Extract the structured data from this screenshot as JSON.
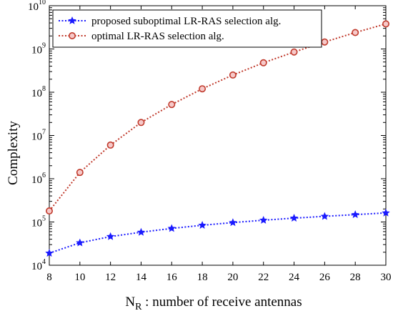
{
  "chart_data": {
    "type": "line",
    "title": "",
    "xlabel_main": "N",
    "xlabel_sub": "R",
    "xlabel_rest": " : number of receive antennas",
    "ylabel": "Complexity",
    "yscale": "log",
    "xlim": [
      8,
      30
    ],
    "ylim": [
      10000,
      10000000000
    ],
    "x_ticks": [
      8,
      10,
      12,
      14,
      16,
      18,
      20,
      22,
      24,
      26,
      28,
      30
    ],
    "y_ticks": [
      {
        "value": 10000,
        "base": "10",
        "exp": "4"
      },
      {
        "value": 100000,
        "base": "10",
        "exp": "5"
      },
      {
        "value": 1000000,
        "base": "10",
        "exp": "6"
      },
      {
        "value": 10000000,
        "base": "10",
        "exp": "7"
      },
      {
        "value": 100000000,
        "base": "10",
        "exp": "8"
      },
      {
        "value": 1000000000,
        "base": "10",
        "exp": "9"
      },
      {
        "value": 10000000000,
        "base": "10",
        "exp": "10"
      }
    ],
    "x": [
      8,
      10,
      12,
      14,
      16,
      18,
      20,
      22,
      24,
      26,
      28,
      30
    ],
    "series": [
      {
        "name": "proposed suboptimal LR-RAS selection alg.",
        "color": "#1a1aff",
        "marker": "star",
        "values": [
          19000,
          33000,
          46000,
          58000,
          71000,
          84000,
          97000,
          110000,
          123000,
          135000,
          148000,
          162000
        ]
      },
      {
        "name": "optimal LR-RAS selection alg.",
        "color": "#c0392b",
        "marker": "circle",
        "values": [
          180000,
          1400000,
          6000000,
          20000000,
          52000000,
          120000000,
          250000000,
          480000000,
          850000000,
          1450000000,
          2400000000,
          3800000000
        ]
      }
    ],
    "legend_position": "top-left",
    "grid": false
  }
}
